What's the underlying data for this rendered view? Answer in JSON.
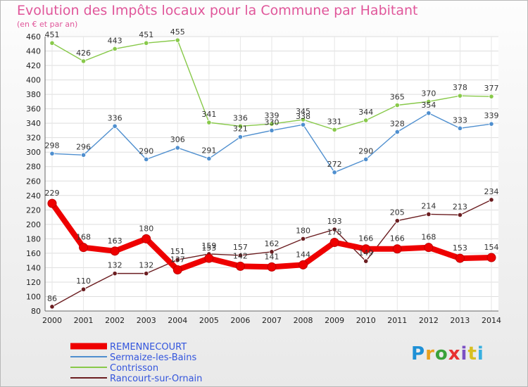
{
  "header": {
    "title": "Evolution des Impôts locaux pour la Commune par Habitant",
    "subtitle": "(en € et par an)"
  },
  "logo": {
    "text": "Proxiti",
    "colors": [
      "#1e90d6",
      "#e8a020",
      "#3aa23a",
      "#e83030",
      "#7b4fc4",
      "#d8c020",
      "#38b0e0"
    ]
  },
  "chart_data": {
    "type": "line",
    "x": [
      "2000",
      "2001",
      "2002",
      "2003",
      "2004",
      "2005",
      "2006",
      "2007",
      "2008",
      "2009",
      "2010",
      "2011",
      "2012",
      "2013",
      "2014"
    ],
    "ylim": [
      80,
      460
    ],
    "yticks": [
      80,
      100,
      120,
      140,
      160,
      180,
      200,
      220,
      240,
      260,
      280,
      300,
      320,
      340,
      360,
      380,
      400,
      420,
      440,
      460
    ],
    "grid": true,
    "legend_position": "bottom-left",
    "series": [
      {
        "name": "REMENNECOURT",
        "color": "#ee0000",
        "emphasis": true,
        "values": [
          229,
          168,
          163,
          180,
          137,
          153,
          142,
          141,
          144,
          175,
          166,
          166,
          168,
          153,
          154
        ],
        "labels": [
          "229",
          "168",
          "163",
          "180",
          "137",
          "153",
          "142",
          "141",
          "144",
          "175",
          "166",
          "166",
          "168",
          "153",
          "154"
        ]
      },
      {
        "name": "Sermaize-les-Bains",
        "color": "#4f8fcf",
        "emphasis": false,
        "values": [
          298,
          296,
          336,
          290,
          306,
          291,
          321,
          330,
          338,
          272,
          290,
          328,
          354,
          333,
          339
        ],
        "labels": [
          "298",
          "296",
          "336",
          "290",
          "306",
          "291",
          "321",
          "330",
          "338",
          "272",
          "290",
          "328",
          "354",
          "333",
          "339"
        ]
      },
      {
        "name": "Contrisson",
        "color": "#88c94a",
        "emphasis": false,
        "values": [
          451,
          426,
          443,
          451,
          455,
          341,
          336,
          339,
          345,
          331,
          344,
          365,
          370,
          378,
          377
        ],
        "labels": [
          "451",
          "426",
          "443",
          "451",
          "455",
          "341",
          "336",
          "339",
          "345",
          "331",
          "344",
          "365",
          "370",
          "378",
          "377"
        ]
      },
      {
        "name": "Rancourt-sur-Ornain",
        "color": "#6b1d20",
        "emphasis": false,
        "values": [
          86,
          110,
          132,
          132,
          151,
          159,
          157,
          162,
          180,
          193,
          149,
          205,
          214,
          213,
          234
        ],
        "labels": [
          "86",
          "110",
          "132",
          "132",
          "151",
          "159",
          "157",
          "162",
          "180",
          "193",
          "149",
          "205",
          "214",
          "213",
          "234"
        ]
      }
    ]
  }
}
